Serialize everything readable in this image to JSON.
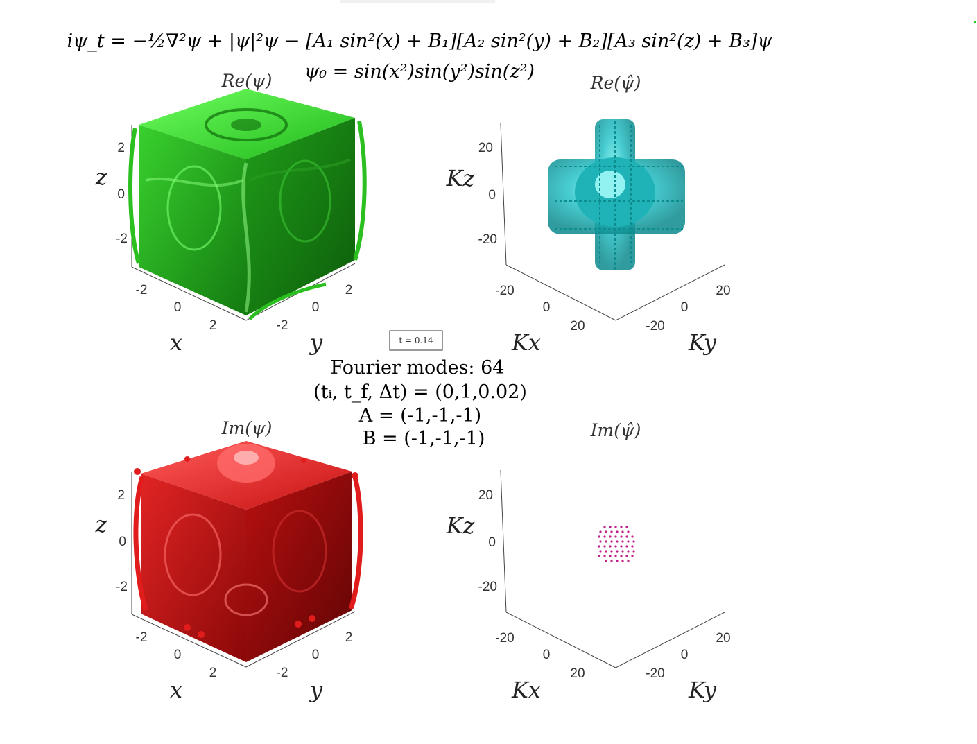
{
  "equation": {
    "main": "iψ_t = −½∇²ψ + |ψ|²ψ − [A₁ sin²(x) + B₁][A₂ sin²(y) + B₂][A₃ sin²(z) + B₃]ψ",
    "initial": "ψ₀ = sin(x²)sin(y²)sin(z²)"
  },
  "time_box": "t = 0.14",
  "info": {
    "fourier": "Fourier modes: 64",
    "time": "(tᵢ, t_f, Δt) = (0,1,0.02)",
    "A": "A = (-1,-1,-1)",
    "B": "B = (-1,-1,-1)"
  },
  "panels": {
    "re_psi": {
      "title": "Re(ψ)",
      "color": "#22c41e",
      "xlabel": "x",
      "ylabel": "y",
      "zlabel": "z",
      "x_ticks": [
        "-2",
        "0",
        "2"
      ],
      "y_ticks": [
        "2",
        "0",
        "-2"
      ],
      "z_ticks": [
        "2",
        "0",
        "-2"
      ]
    },
    "re_psi_hat": {
      "title": "Re(ψ̂)",
      "color": "#1fc0c4",
      "xlabel": "Kx",
      "ylabel": "Ky",
      "zlabel": "Kz",
      "x_ticks": [
        "-20",
        "0",
        "20"
      ],
      "y_ticks": [
        "20",
        "0",
        "-20"
      ],
      "z_ticks": [
        "20",
        "0",
        "-20"
      ]
    },
    "im_psi": {
      "title": "Im(ψ)",
      "color": "#d01414",
      "xlabel": "x",
      "ylabel": "y",
      "zlabel": "z",
      "x_ticks": [
        "-2",
        "0",
        "2"
      ],
      "y_ticks": [
        "2",
        "0",
        "-2"
      ],
      "z_ticks": [
        "2",
        "0",
        "-2"
      ]
    },
    "im_psi_hat": {
      "title": "Im(ψ̂)",
      "color": "#c0208a",
      "xlabel": "Kx",
      "ylabel": "Ky",
      "zlabel": "Kz",
      "x_ticks": [
        "-20",
        "0",
        "20"
      ],
      "y_ticks": [
        "20",
        "0",
        "-20"
      ],
      "z_ticks": [
        "20",
        "0",
        "-20"
      ]
    }
  }
}
